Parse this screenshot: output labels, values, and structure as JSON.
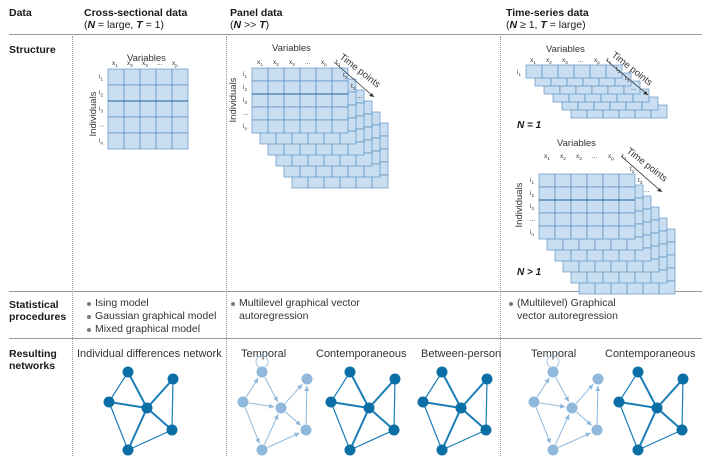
{
  "columns": {
    "data": {
      "title": "Data"
    },
    "cross": {
      "title": "Cross-sectional data",
      "n_part": "N",
      "n_val": " = large, ",
      "t_part": "T",
      "t_val": " = 1)"
    },
    "panel": {
      "title": "Panel data",
      "n_part": "N",
      "rel": " >> ",
      "t_part": "T",
      "close": ")"
    },
    "ts": {
      "title": "Time-series data",
      "n_part": "N",
      "n_val": " ≥ 1, ",
      "t_part": "T",
      "t_val": " = large)"
    }
  },
  "rows": {
    "structure": "Structure",
    "statistical": [
      "Statistical",
      "procedures"
    ],
    "resulting": [
      "Resulting",
      "networks"
    ]
  },
  "matrix_labels": {
    "variables": "Variables",
    "individuals": "Individuals",
    "time_points": "Time points",
    "x": "x",
    "i": "i",
    "t": "t",
    "ellipsis": "...",
    "sub_p": "p",
    "sub_n": "n",
    "subs": [
      "1",
      "2",
      "3"
    ],
    "n_equals_1": "N = 1",
    "n_greater_1": "N > 1"
  },
  "procedures": {
    "cross": [
      "Ising model",
      "Gaussian graphical model",
      "Mixed graphical model"
    ],
    "panel": [
      "Multilevel graphical vector",
      "autoregression"
    ],
    "ts": [
      "(Multilevel) Graphical",
      "vector autoregression"
    ]
  },
  "networks": {
    "cross": "Individual differences network",
    "panel": [
      "Temporal",
      "Contemporaneous",
      "Between-person"
    ],
    "ts": [
      "Temporal",
      "Contemporaneous"
    ]
  },
  "colors": {
    "cell_fill": "#c9def0",
    "cell_stroke": "#4b86bf",
    "node_dark": "#0b6fa6",
    "node_light": "#8fb8db",
    "edge_dark": "#1a7db5",
    "edge_light": "#8fb8db"
  }
}
